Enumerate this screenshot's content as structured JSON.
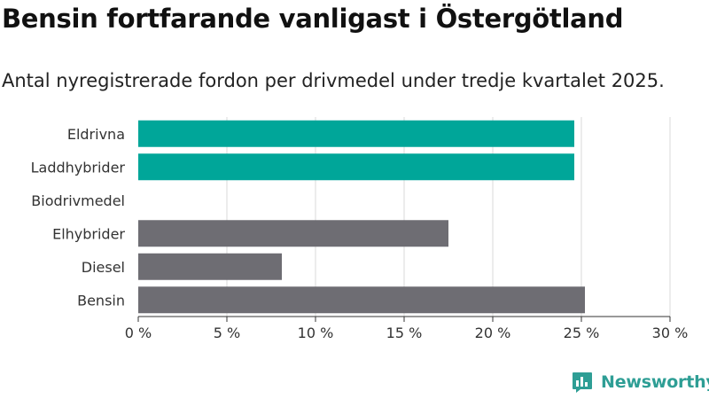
{
  "title": "Bensin fortfarande vanligast i Östergötland",
  "subtitle": "Antal nyregistrerade fordon per drivmedel under tredje kvartalet 2025.",
  "brand": "Newsworthy",
  "colors": {
    "highlight": "#00a699",
    "default": "#6e6d73",
    "grid": "#d9d9d9",
    "text": "#333333"
  },
  "chart_data": {
    "type": "bar",
    "orientation": "horizontal",
    "categories": [
      "Eldrivna",
      "Laddhybrider",
      "Biodrivmedel",
      "Elhybrider",
      "Diesel",
      "Bensin"
    ],
    "values": [
      24.6,
      24.6,
      0,
      17.5,
      8.1,
      25.2
    ],
    "highlight": [
      true,
      true,
      false,
      false,
      false,
      false
    ],
    "xlim": [
      0,
      30
    ],
    "ticks": [
      0,
      5,
      10,
      15,
      20,
      25,
      30
    ],
    "tick_labels": [
      "0 %",
      "5 %",
      "10 %",
      "15 %",
      "20 %",
      "25 %",
      "30 %"
    ],
    "grid": true,
    "xlabel": "",
    "ylabel": ""
  }
}
